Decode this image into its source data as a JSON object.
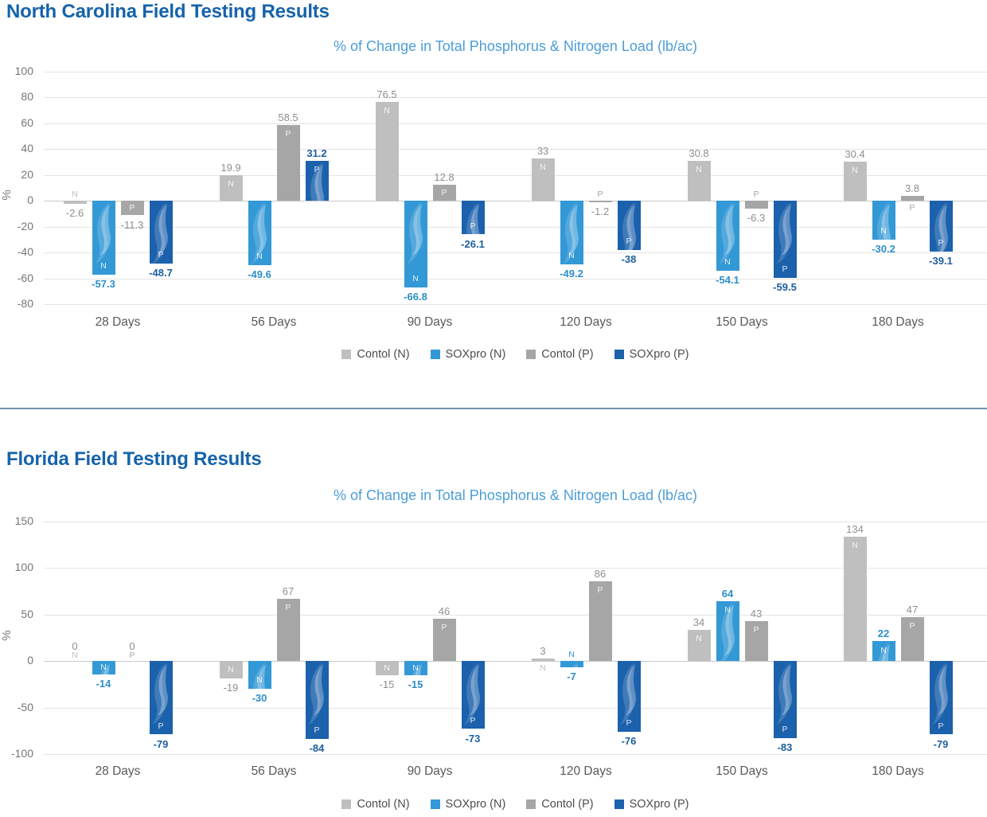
{
  "chart_data": [
    {
      "type": "bar",
      "title": "North Carolina Field Testing Results",
      "subtitle": "% of Change in Total Phosphorus & Nitrogen Load (lb/ac)",
      "ylabel": "%",
      "ylim": [
        -80,
        100
      ],
      "yticks": [
        100,
        80,
        60,
        40,
        20,
        0,
        -20,
        -40,
        -60,
        -80
      ],
      "grid": true,
      "legend_position": "bottom",
      "categories": [
        "28 Days",
        "56 Days",
        "90 Days",
        "120 Days",
        "150 Days",
        "180 Days"
      ],
      "series": [
        {
          "name": "Contol (N)",
          "marker": "N",
          "color": "#bfbfbf",
          "label_color": "#8f8f8f",
          "brand_wave": false,
          "values": [
            -2.6,
            19.9,
            76.5,
            33,
            30.8,
            30.4
          ]
        },
        {
          "name": "SOXpro (N)",
          "marker": "N",
          "color": "#3398d6",
          "label_color": "#2c8ec9",
          "brand_wave": true,
          "values": [
            -57.3,
            -49.6,
            -66.8,
            -49.2,
            -54.1,
            -30.2
          ]
        },
        {
          "name": "Contol (P)",
          "marker": "P",
          "color": "#a6a6a6",
          "label_color": "#8f8f8f",
          "brand_wave": false,
          "values": [
            -11.3,
            58.5,
            12.8,
            -1.2,
            -6.3,
            3.8
          ]
        },
        {
          "name": "SOXpro (P)",
          "marker": "P",
          "color": "#1b61ac",
          "label_color": "#1c5e9e",
          "brand_wave": true,
          "values": [
            -48.7,
            31.2,
            -26.1,
            -38,
            -59.5,
            -39.1
          ]
        }
      ]
    },
    {
      "type": "bar",
      "title": "Florida Field Testing Results",
      "subtitle": "% of Change in Total Phosphorus & Nitrogen Load (lb/ac)",
      "ylabel": "%",
      "ylim": [
        -100,
        150
      ],
      "yticks": [
        150,
        100,
        50,
        0,
        -50,
        -100
      ],
      "grid": true,
      "legend_position": "bottom",
      "categories": [
        "28 Days",
        "56 Days",
        "90 Days",
        "120 Days",
        "150 Days",
        "180 Days"
      ],
      "series": [
        {
          "name": "Contol (N)",
          "marker": "N",
          "color": "#bfbfbf",
          "label_color": "#8f8f8f",
          "brand_wave": false,
          "values": [
            0,
            -19,
            -15,
            3,
            34,
            134
          ]
        },
        {
          "name": "SOXpro (N)",
          "marker": "N",
          "color": "#3398d6",
          "label_color": "#2c8ec9",
          "brand_wave": true,
          "values": [
            -14,
            -30,
            -15,
            -7,
            64,
            22
          ]
        },
        {
          "name": "Contol (P)",
          "marker": "P",
          "color": "#a6a6a6",
          "label_color": "#8f8f8f",
          "brand_wave": false,
          "values": [
            0,
            67,
            46,
            86,
            43,
            47
          ]
        },
        {
          "name": "SOXpro (P)",
          "marker": "P",
          "color": "#1b61ac",
          "label_color": "#1c5e9e",
          "brand_wave": true,
          "values": [
            -79,
            -84,
            -73,
            -76,
            -83,
            -79
          ]
        }
      ]
    }
  ],
  "colors": {
    "title": "#1563ab",
    "subtitle": "#4d9ed8",
    "divider": "#6e95ab",
    "axis_text": "#767676",
    "category_text": "#595959",
    "legend_text": "#4d4d4d",
    "gridline": "#e4e4e4",
    "zero_line": "#c9c9c9"
  }
}
